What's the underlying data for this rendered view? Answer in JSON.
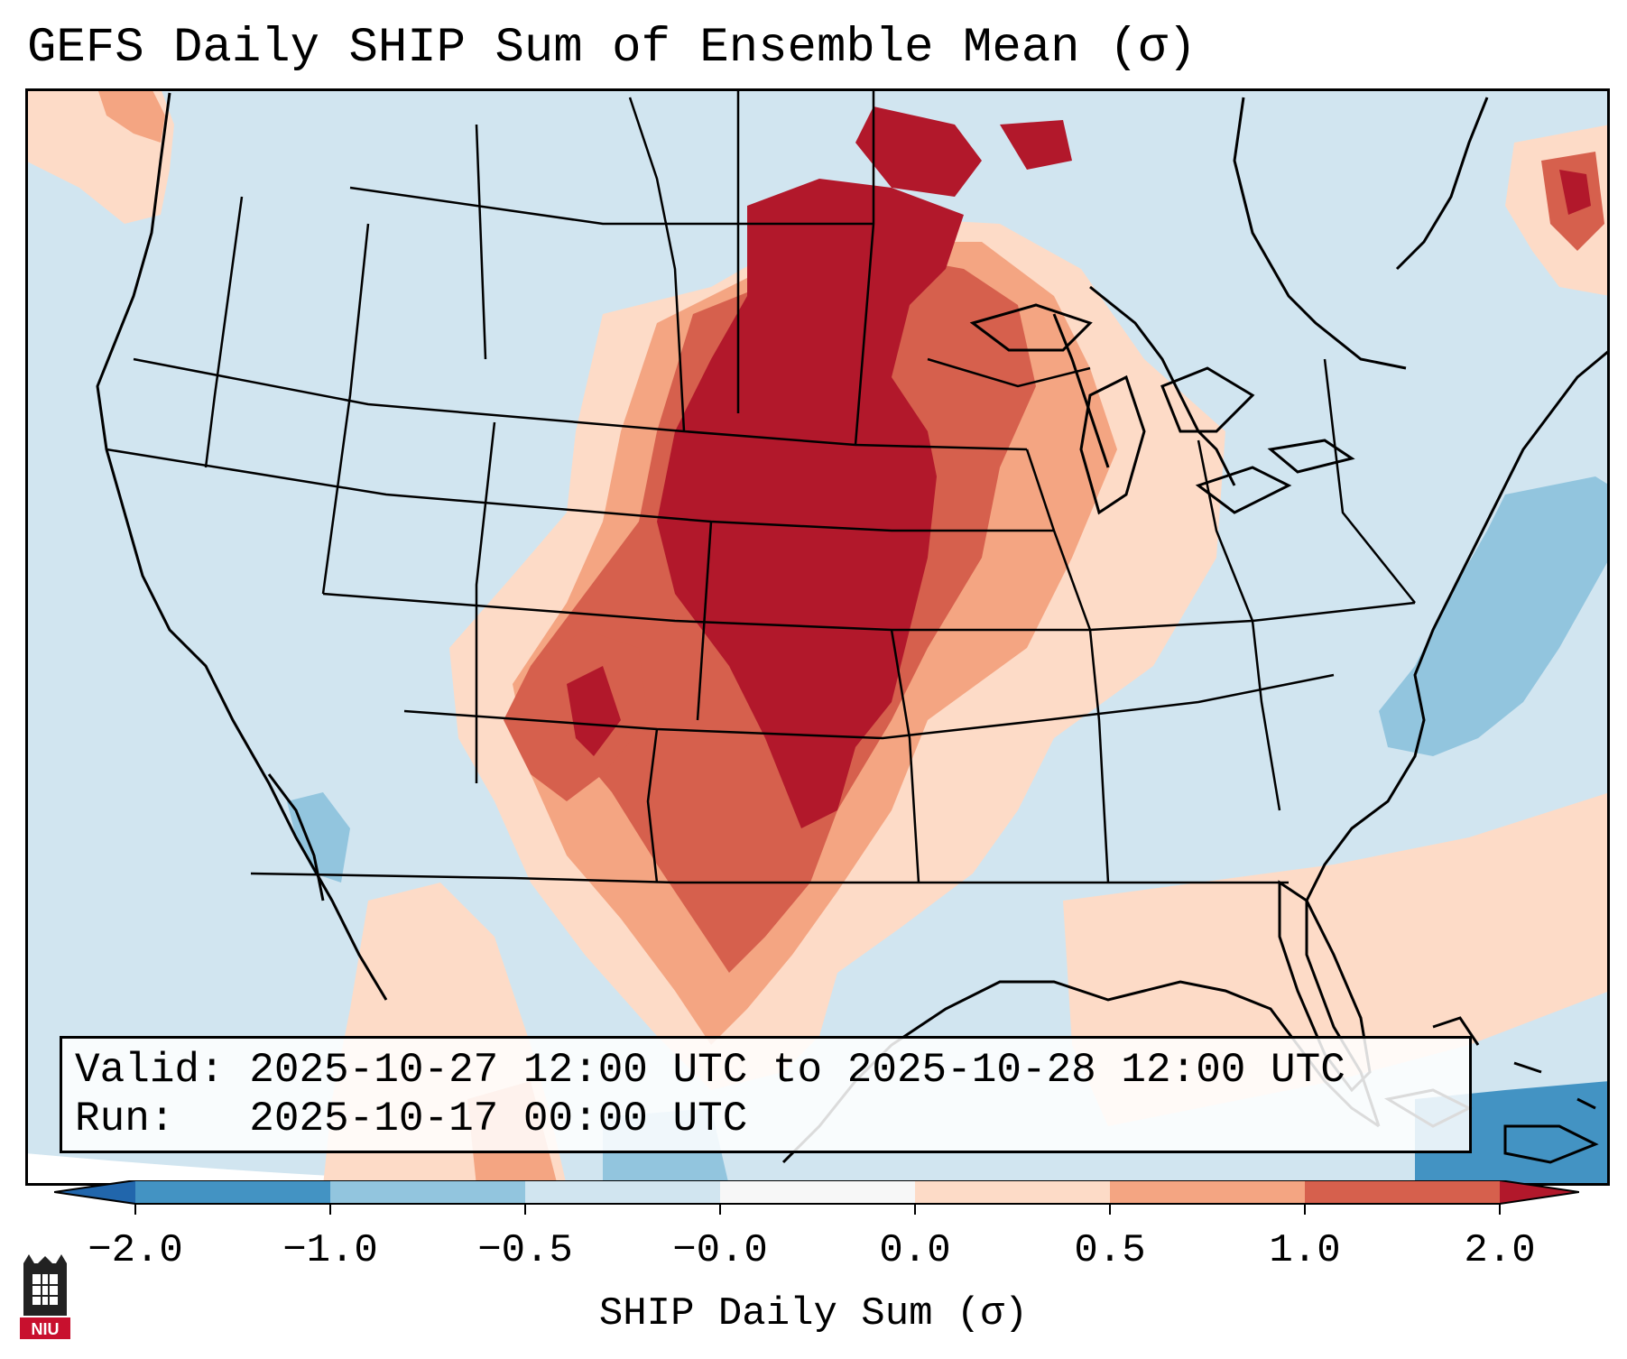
{
  "title": "GEFS Daily SHIP Sum of Ensemble Mean (σ)",
  "map": {
    "region": "Contiguous United States, southern Canada, northern Mexico",
    "field": "SHIP daily sum, ensemble mean (sigma)",
    "colors": {
      "ocean_bg": "#d1e5f0",
      "level_neg2": "#4393c3",
      "level_neg1": "#92c5de",
      "level_neg05": "#d1e5f0",
      "level_0": "#fddbc7",
      "level_05": "#f4a582",
      "level_1": "#d6604d",
      "level_2": "#b2182b",
      "coast": "#000000"
    }
  },
  "info": {
    "valid_line": "Valid: 2025-10-27 12:00 UTC to 2025-10-28 12:00 UTC",
    "run_line": "Run:   2025-10-17 00:00 UTC"
  },
  "colorbar": {
    "ticks": [
      "−2.0",
      "−1.0",
      "−0.5",
      "−0.0",
      "0.0",
      "0.5",
      "1.0",
      "2.0"
    ],
    "label": "SHIP Daily Sum (σ)"
  },
  "logo": {
    "text": "NIU",
    "color": "#c8102e"
  }
}
